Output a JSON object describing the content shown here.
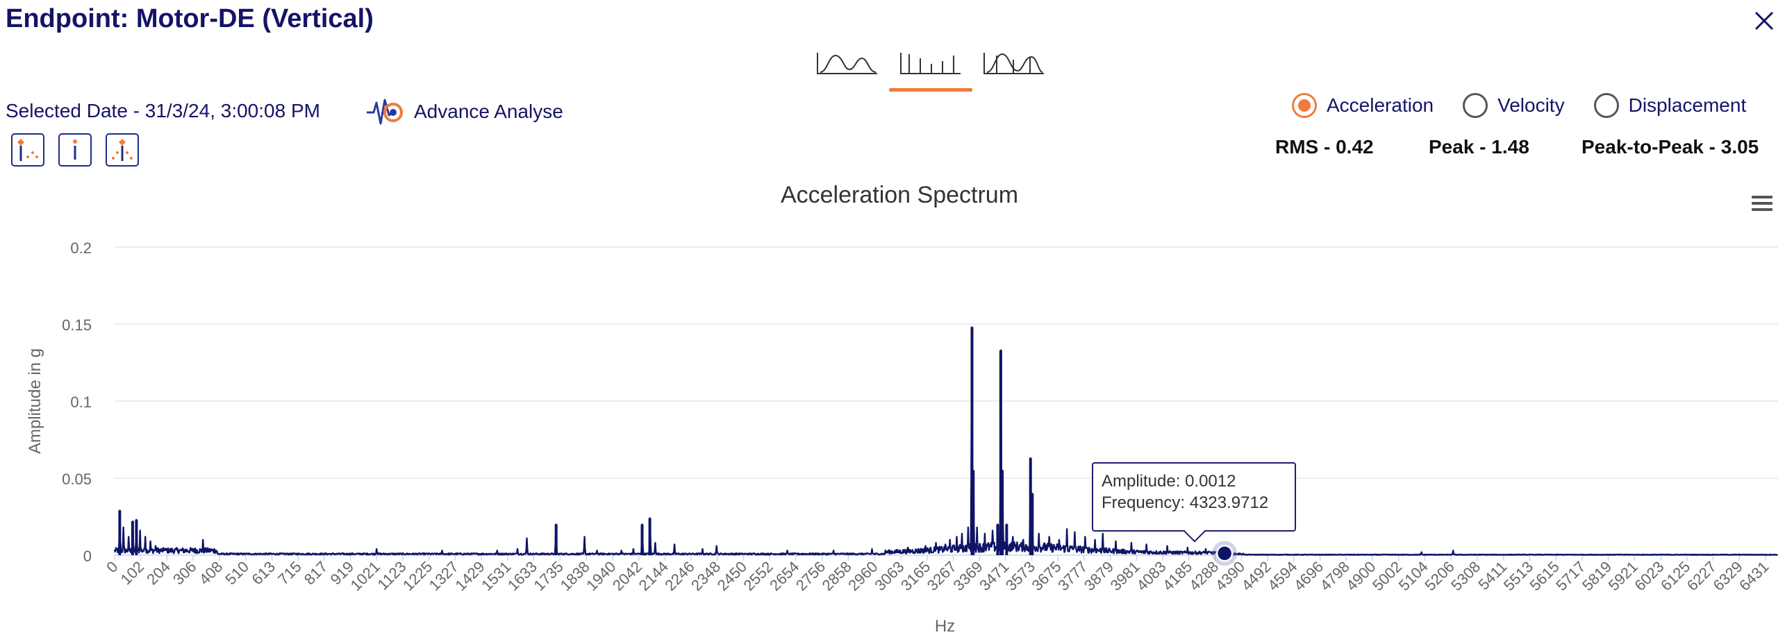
{
  "header": {
    "title": "Endpoint: Motor-DE (Vertical)",
    "close_icon": "close-icon"
  },
  "view_tabs": [
    {
      "name": "waveform-tab",
      "icon": "waveform-icon",
      "active": false
    },
    {
      "name": "spectrum-tab",
      "icon": "spectrum-bars-icon",
      "active": true
    },
    {
      "name": "overlay-tab",
      "icon": "waveform-spectrum-icon",
      "active": false
    }
  ],
  "selected_date": "Selected Date - 31/3/24, 3:00:08 PM",
  "advance_analyse": {
    "label": "Advance Analyse",
    "icon": "advance-analyse-icon"
  },
  "tools": [
    {
      "name": "peak-marker-tool",
      "icon": "peak-marker-icon"
    },
    {
      "name": "info-marker-tool",
      "icon": "info-marker-icon"
    },
    {
      "name": "harmonic-marker-tool",
      "icon": "harmonic-marker-icon"
    }
  ],
  "radio_options": [
    {
      "label": "Acceleration",
      "checked": true
    },
    {
      "label": "Velocity",
      "checked": false
    },
    {
      "label": "Displacement",
      "checked": false
    }
  ],
  "stats": {
    "rms": "RMS - 0.42",
    "peak": "Peak - 1.48",
    "p2p": "Peak-to-Peak - 3.05"
  },
  "chart_data": {
    "type": "line",
    "title": "Acceleration Spectrum",
    "xlabel": "Hz",
    "ylabel": "Amplitude in g",
    "ylim": [
      0,
      0.2
    ],
    "yticks": [
      "0",
      "0.05",
      "0.1",
      "0.15",
      "0.2"
    ],
    "xticks": [
      "0",
      "102",
      "204",
      "306",
      "408",
      "510",
      "613",
      "715",
      "817",
      "919",
      "1021",
      "1123",
      "1225",
      "1327",
      "1429",
      "1531",
      "1633",
      "1735",
      "1838",
      "1940",
      "2042",
      "2144",
      "2246",
      "2348",
      "2450",
      "2552",
      "2654",
      "2756",
      "2858",
      "2960",
      "3063",
      "3165",
      "3267",
      "3369",
      "3471",
      "3573",
      "3675",
      "3777",
      "3879",
      "3981",
      "4083",
      "4185",
      "4288",
      "4390",
      "4492",
      "4594",
      "4696",
      "4798",
      "4900",
      "5002",
      "5104",
      "5206",
      "5308",
      "5411",
      "5513",
      "5615",
      "5717",
      "5819",
      "5921",
      "6023",
      "6125",
      "6227",
      "6329",
      "6431"
    ],
    "xlim": [
      0,
      6480
    ],
    "grid": true,
    "color": "#0e1466",
    "peaks": [
      {
        "x": 20,
        "y": 0.029
      },
      {
        "x": 35,
        "y": 0.018
      },
      {
        "x": 55,
        "y": 0.012
      },
      {
        "x": 70,
        "y": 0.022
      },
      {
        "x": 85,
        "y": 0.023
      },
      {
        "x": 100,
        "y": 0.016
      },
      {
        "x": 120,
        "y": 0.012
      },
      {
        "x": 140,
        "y": 0.009
      },
      {
        "x": 160,
        "y": 0.006
      },
      {
        "x": 195,
        "y": 0.004
      },
      {
        "x": 255,
        "y": 0.003
      },
      {
        "x": 310,
        "y": 0.004
      },
      {
        "x": 345,
        "y": 0.01
      },
      {
        "x": 1020,
        "y": 0.004
      },
      {
        "x": 1275,
        "y": 0.003
      },
      {
        "x": 1490,
        "y": 0.003
      },
      {
        "x": 1490,
        "y": 0.003
      },
      {
        "x": 1570,
        "y": 0.004
      },
      {
        "x": 1605,
        "y": 0.011
      },
      {
        "x": 1720,
        "y": 0.02
      },
      {
        "x": 1830,
        "y": 0.012
      },
      {
        "x": 1880,
        "y": 0.003
      },
      {
        "x": 1975,
        "y": 0.003
      },
      {
        "x": 2020,
        "y": 0.004
      },
      {
        "x": 2055,
        "y": 0.02
      },
      {
        "x": 2085,
        "y": 0.024
      },
      {
        "x": 2105,
        "y": 0.008
      },
      {
        "x": 2180,
        "y": 0.007
      },
      {
        "x": 2290,
        "y": 0.004
      },
      {
        "x": 2345,
        "y": 0.006
      },
      {
        "x": 2620,
        "y": 0.003
      },
      {
        "x": 2800,
        "y": 0.003
      },
      {
        "x": 2950,
        "y": 0.004
      },
      {
        "x": 3090,
        "y": 0.005
      },
      {
        "x": 3160,
        "y": 0.006
      },
      {
        "x": 3200,
        "y": 0.008
      },
      {
        "x": 3235,
        "y": 0.007
      },
      {
        "x": 3255,
        "y": 0.01
      },
      {
        "x": 3280,
        "y": 0.012
      },
      {
        "x": 3300,
        "y": 0.014
      },
      {
        "x": 3325,
        "y": 0.018
      },
      {
        "x": 3340,
        "y": 0.148
      },
      {
        "x": 3345,
        "y": 0.055
      },
      {
        "x": 3360,
        "y": 0.018
      },
      {
        "x": 3390,
        "y": 0.014
      },
      {
        "x": 3420,
        "y": 0.016
      },
      {
        "x": 3440,
        "y": 0.02
      },
      {
        "x": 3452,
        "y": 0.133
      },
      {
        "x": 3458,
        "y": 0.055
      },
      {
        "x": 3475,
        "y": 0.02
      },
      {
        "x": 3500,
        "y": 0.012
      },
      {
        "x": 3540,
        "y": 0.01
      },
      {
        "x": 3568,
        "y": 0.063
      },
      {
        "x": 3575,
        "y": 0.04
      },
      {
        "x": 3600,
        "y": 0.014
      },
      {
        "x": 3640,
        "y": 0.012
      },
      {
        "x": 3680,
        "y": 0.01
      },
      {
        "x": 3710,
        "y": 0.017
      },
      {
        "x": 3740,
        "y": 0.015
      },
      {
        "x": 3780,
        "y": 0.012
      },
      {
        "x": 3820,
        "y": 0.01
      },
      {
        "x": 3850,
        "y": 0.014
      },
      {
        "x": 3900,
        "y": 0.009
      },
      {
        "x": 3960,
        "y": 0.008
      },
      {
        "x": 4020,
        "y": 0.007
      },
      {
        "x": 4100,
        "y": 0.006
      },
      {
        "x": 4180,
        "y": 0.005
      },
      {
        "x": 4250,
        "y": 0.004
      },
      {
        "x": 4324,
        "y": 0.0012
      },
      {
        "x": 5090,
        "y": 0.002
      },
      {
        "x": 5215,
        "y": 0.003
      }
    ],
    "tooltip": {
      "amplitude_label": "Amplitude: ",
      "amplitude": "0.0012",
      "frequency_label": "Frequency: ",
      "frequency": "4323.9712",
      "x": 4323.9712,
      "y": 0.0012
    }
  }
}
